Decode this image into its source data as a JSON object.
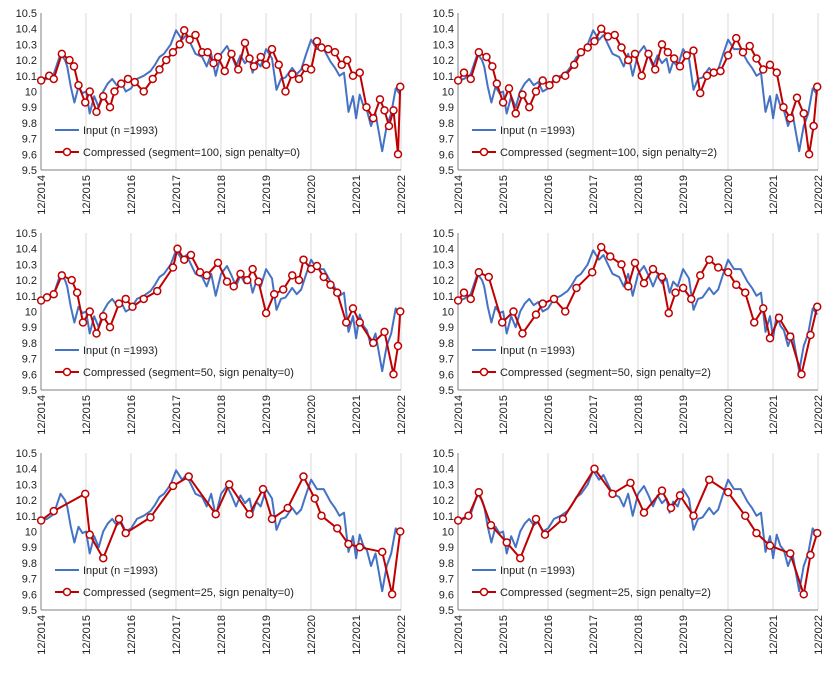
{
  "colors": {
    "input": "#4472C4",
    "compressed": "#C00000",
    "axis": "#808080",
    "grid": "#d9d9d9"
  },
  "legend_input_label": "Input (n =1993)",
  "panels": [
    {
      "legend_compressed_label": "Compressed (segment=100, sign penalty=0)"
    },
    {
      "legend_compressed_label": "Compressed (segment=100, sign penalty=2)"
    },
    {
      "legend_compressed_label": "Compressed (segment=50, sign penalty=0)"
    },
    {
      "legend_compressed_label": "Compressed (segment=50, sign penalty=2)"
    },
    {
      "legend_compressed_label": "Compressed (segment=25, sign penalty=0)"
    },
    {
      "legend_compressed_label": "Compressed (segment=25, sign penalty=2)"
    }
  ],
  "chart_data": {
    "type": "line",
    "layout": "3x2 grid",
    "legend_placement": "lower-left",
    "grid": "vertical gridlines",
    "x_unit": "fractional year",
    "xlim": [
      2014.917,
      2022.917
    ],
    "ylim": [
      9.5,
      10.5
    ],
    "y_ticks": [
      9.5,
      9.6,
      9.7,
      9.8,
      9.9,
      10,
      10.1,
      10.2,
      10.3,
      10.4,
      10.5
    ],
    "y_tick_labels": [
      "9.5",
      "9.6",
      "9.7",
      "9.8",
      "9.9",
      "10",
      "10.1",
      "10.2",
      "10.3",
      "10.4",
      "10.5"
    ],
    "x_ticks": [
      2014.917,
      2015.917,
      2016.917,
      2017.917,
      2018.917,
      2019.917,
      2020.917,
      2021.917,
      2022.917
    ],
    "x_tick_labels": [
      "12/2014",
      "12/2015",
      "12/2016",
      "12/2017",
      "12/2018",
      "12/2019",
      "12/2020",
      "12/2021",
      "12/2022"
    ],
    "input_series": {
      "name": "Input (n =1993)",
      "x": [
        2014.92,
        2015.05,
        2015.2,
        2015.35,
        2015.45,
        2015.5,
        2015.58,
        2015.66,
        2015.75,
        2015.84,
        2015.92,
        2016.0,
        2016.1,
        2016.2,
        2016.3,
        2016.4,
        2016.5,
        2016.6,
        2016.7,
        2016.8,
        2016.92,
        2017.05,
        2017.2,
        2017.35,
        2017.45,
        2017.55,
        2017.65,
        2017.8,
        2017.92,
        2018.05,
        2018.15,
        2018.25,
        2018.35,
        2018.5,
        2018.6,
        2018.7,
        2018.8,
        2018.92,
        2019.05,
        2019.15,
        2019.25,
        2019.35,
        2019.45,
        2019.55,
        2019.62,
        2019.7,
        2019.8,
        2019.92,
        2020.05,
        2020.15,
        2020.25,
        2020.35,
        2020.5,
        2020.6,
        2020.7,
        2020.8,
        2020.92,
        2021.05,
        2021.2,
        2021.35,
        2021.45,
        2021.55,
        2021.65,
        2021.75,
        2021.85,
        2021.92,
        2022.0,
        2022.08,
        2022.16,
        2022.25,
        2022.35,
        2022.5,
        2022.6,
        2022.7,
        2022.8,
        2022.9
      ],
      "y": [
        10.07,
        10.08,
        10.11,
        10.24,
        10.2,
        10.16,
        10.03,
        9.93,
        10.03,
        9.99,
        10.0,
        9.86,
        9.97,
        9.9,
        10.0,
        10.05,
        10.08,
        10.04,
        10.06,
        10.0,
        10.02,
        10.08,
        10.1,
        10.13,
        10.17,
        10.22,
        10.24,
        10.3,
        10.39,
        10.33,
        10.36,
        10.3,
        10.24,
        10.22,
        10.16,
        10.24,
        10.1,
        10.24,
        10.29,
        10.23,
        10.16,
        10.23,
        10.18,
        10.21,
        10.12,
        10.19,
        10.16,
        10.27,
        10.21,
        10.01,
        10.08,
        10.09,
        10.15,
        10.11,
        10.14,
        10.23,
        10.33,
        10.27,
        10.27,
        10.19,
        10.15,
        10.1,
        10.12,
        9.87,
        9.97,
        9.83,
        9.98,
        9.91,
        9.88,
        9.78,
        9.86,
        9.62,
        9.78,
        9.86,
        10.02,
        9.98
      ]
    },
    "compressed_series": [
      {
        "name": "Compressed (segment=100, sign penalty=0)",
        "x": [
          2014.92,
          2015.1,
          2015.2,
          2015.38,
          2015.55,
          2015.65,
          2015.75,
          2015.9,
          2016.0,
          2016.15,
          2016.3,
          2016.45,
          2016.55,
          2016.7,
          2016.85,
          2017.0,
          2017.2,
          2017.4,
          2017.55,
          2017.7,
          2017.85,
          2018.0,
          2018.1,
          2018.22,
          2018.35,
          2018.5,
          2018.62,
          2018.75,
          2018.85,
          2019.0,
          2019.15,
          2019.3,
          2019.45,
          2019.55,
          2019.65,
          2019.8,
          2019.92,
          2020.05,
          2020.2,
          2020.35,
          2020.5,
          2020.65,
          2020.8,
          2020.92,
          2021.05,
          2021.15,
          2021.3,
          2021.45,
          2021.6,
          2021.72,
          2021.85,
          2022.0,
          2022.15,
          2022.3,
          2022.45,
          2022.55,
          2022.65,
          2022.75,
          2022.85,
          2022.9
        ],
        "y": [
          10.07,
          10.1,
          10.08,
          10.24,
          10.2,
          10.16,
          10.04,
          9.93,
          10.0,
          9.87,
          9.97,
          9.9,
          10.0,
          10.05,
          10.08,
          10.06,
          10.0,
          10.08,
          10.14,
          10.2,
          10.25,
          10.3,
          10.39,
          10.33,
          10.36,
          10.25,
          10.25,
          10.18,
          10.22,
          10.13,
          10.24,
          10.14,
          10.31,
          10.21,
          10.16,
          10.22,
          10.17,
          10.27,
          10.17,
          10.0,
          10.11,
          10.08,
          10.15,
          10.14,
          10.32,
          10.28,
          10.27,
          10.25,
          10.17,
          10.2,
          10.1,
          10.12,
          9.9,
          9.83,
          9.95,
          9.88,
          9.78,
          9.88,
          9.6,
          10.03
        ]
      },
      {
        "name": "Compressed (segment=100, sign penalty=2)",
        "x": [
          2014.92,
          2015.05,
          2015.2,
          2015.38,
          2015.55,
          2015.68,
          2015.78,
          2015.92,
          2016.05,
          2016.2,
          2016.35,
          2016.5,
          2016.65,
          2016.8,
          2016.95,
          2017.1,
          2017.3,
          2017.5,
          2017.65,
          2017.8,
          2017.95,
          2018.1,
          2018.25,
          2018.4,
          2018.55,
          2018.7,
          2018.85,
          2019.0,
          2019.15,
          2019.3,
          2019.45,
          2019.58,
          2019.72,
          2019.85,
          2020.0,
          2020.15,
          2020.3,
          2020.45,
          2020.6,
          2020.75,
          2020.92,
          2021.1,
          2021.25,
          2021.4,
          2021.55,
          2021.7,
          2021.85,
          2022.0,
          2022.15,
          2022.3,
          2022.45,
          2022.6,
          2022.72,
          2022.82,
          2022.9
        ],
        "y": [
          10.07,
          10.12,
          10.08,
          10.25,
          10.22,
          10.16,
          10.05,
          9.93,
          10.02,
          9.86,
          9.98,
          9.9,
          10.0,
          10.07,
          10.04,
          10.08,
          10.1,
          10.17,
          10.25,
          10.28,
          10.32,
          10.4,
          10.35,
          10.36,
          10.28,
          10.2,
          10.24,
          10.1,
          10.24,
          10.14,
          10.3,
          10.25,
          10.21,
          10.16,
          10.23,
          10.26,
          9.99,
          10.1,
          10.12,
          10.13,
          10.23,
          10.34,
          10.25,
          10.29,
          10.21,
          10.14,
          10.17,
          10.12,
          9.9,
          9.83,
          9.96,
          9.86,
          9.6,
          9.78,
          10.03
        ]
      },
      {
        "name": "Compressed (segment=50, sign penalty=0)",
        "x": [
          2014.92,
          2015.05,
          2015.2,
          2015.38,
          2015.6,
          2015.72,
          2015.85,
          2016.0,
          2016.15,
          2016.3,
          2016.45,
          2016.65,
          2016.8,
          2016.95,
          2017.2,
          2017.5,
          2017.85,
          2017.95,
          2018.1,
          2018.25,
          2018.45,
          2018.6,
          2018.85,
          2019.05,
          2019.2,
          2019.35,
          2019.5,
          2019.62,
          2019.75,
          2019.92,
          2020.1,
          2020.3,
          2020.5,
          2020.65,
          2020.75,
          2020.92,
          2021.05,
          2021.2,
          2021.35,
          2021.5,
          2021.7,
          2021.85,
          2022.0,
          2022.3,
          2022.55,
          2022.75,
          2022.85,
          2022.9
        ],
        "y": [
          10.07,
          10.09,
          10.11,
          10.23,
          10.2,
          10.12,
          9.93,
          10.0,
          9.86,
          9.97,
          9.9,
          10.05,
          10.08,
          10.03,
          10.08,
          10.13,
          10.28,
          10.4,
          10.33,
          10.36,
          10.25,
          10.23,
          10.31,
          10.19,
          10.16,
          10.24,
          10.2,
          10.27,
          10.19,
          9.99,
          10.11,
          10.14,
          10.23,
          10.2,
          10.33,
          10.27,
          10.29,
          10.22,
          10.17,
          10.12,
          9.93,
          10.02,
          9.93,
          9.8,
          9.87,
          9.6,
          9.78,
          10.0
        ]
      },
      {
        "name": "Compressed (segment=50, sign penalty=2)",
        "x": [
          2014.92,
          2015.05,
          2015.2,
          2015.38,
          2015.6,
          2015.9,
          2016.15,
          2016.35,
          2016.65,
          2016.8,
          2017.05,
          2017.3,
          2017.55,
          2017.9,
          2018.1,
          2018.3,
          2018.55,
          2018.7,
          2018.85,
          2019.05,
          2019.25,
          2019.45,
          2019.6,
          2019.75,
          2019.92,
          2020.1,
          2020.3,
          2020.5,
          2020.7,
          2020.92,
          2021.1,
          2021.3,
          2021.5,
          2021.7,
          2021.85,
          2022.05,
          2022.3,
          2022.55,
          2022.75,
          2022.9
        ],
        "y": [
          10.07,
          10.12,
          10.08,
          10.25,
          10.22,
          9.93,
          10.0,
          9.86,
          9.98,
          10.05,
          10.08,
          10.0,
          10.15,
          10.25,
          10.41,
          10.35,
          10.3,
          10.16,
          10.31,
          10.18,
          10.27,
          10.22,
          9.99,
          10.12,
          10.15,
          10.08,
          10.23,
          10.33,
          10.28,
          10.25,
          10.17,
          10.12,
          9.93,
          10.02,
          9.83,
          9.96,
          9.84,
          9.6,
          9.85,
          10.03
        ]
      },
      {
        "name": "Compressed (segment=25, sign penalty=0)",
        "x": [
          2014.92,
          2015.2,
          2015.9,
          2016.0,
          2016.3,
          2016.65,
          2016.8,
          2017.35,
          2017.85,
          2018.2,
          2018.8,
          2019.1,
          2019.55,
          2019.85,
          2020.05,
          2020.4,
          2020.75,
          2021.0,
          2021.15,
          2021.5,
          2021.75,
          2022.0,
          2022.5,
          2022.72,
          2022.9
        ],
        "y": [
          10.07,
          10.13,
          10.24,
          9.98,
          9.83,
          10.08,
          9.99,
          10.09,
          10.29,
          10.35,
          10.11,
          10.3,
          10.11,
          10.27,
          10.08,
          10.15,
          10.35,
          10.21,
          10.1,
          10.02,
          9.92,
          9.9,
          9.87,
          9.6,
          10.0
        ]
      },
      {
        "name": "Compressed (segment=25, sign penalty=2)",
        "x": [
          2014.92,
          2015.15,
          2015.38,
          2015.65,
          2016.0,
          2016.3,
          2016.65,
          2016.85,
          2017.25,
          2017.95,
          2018.35,
          2018.75,
          2019.05,
          2019.45,
          2019.65,
          2019.85,
          2020.15,
          2020.5,
          2020.92,
          2021.3,
          2021.55,
          2021.85,
          2022.3,
          2022.6,
          2022.75,
          2022.9
        ],
        "y": [
          10.07,
          10.1,
          10.25,
          10.04,
          9.93,
          9.83,
          10.08,
          9.98,
          10.08,
          10.4,
          10.24,
          10.31,
          10.12,
          10.26,
          10.15,
          10.23,
          10.1,
          10.33,
          10.25,
          10.1,
          9.99,
          9.91,
          9.86,
          9.6,
          9.85,
          9.99
        ]
      }
    ]
  }
}
